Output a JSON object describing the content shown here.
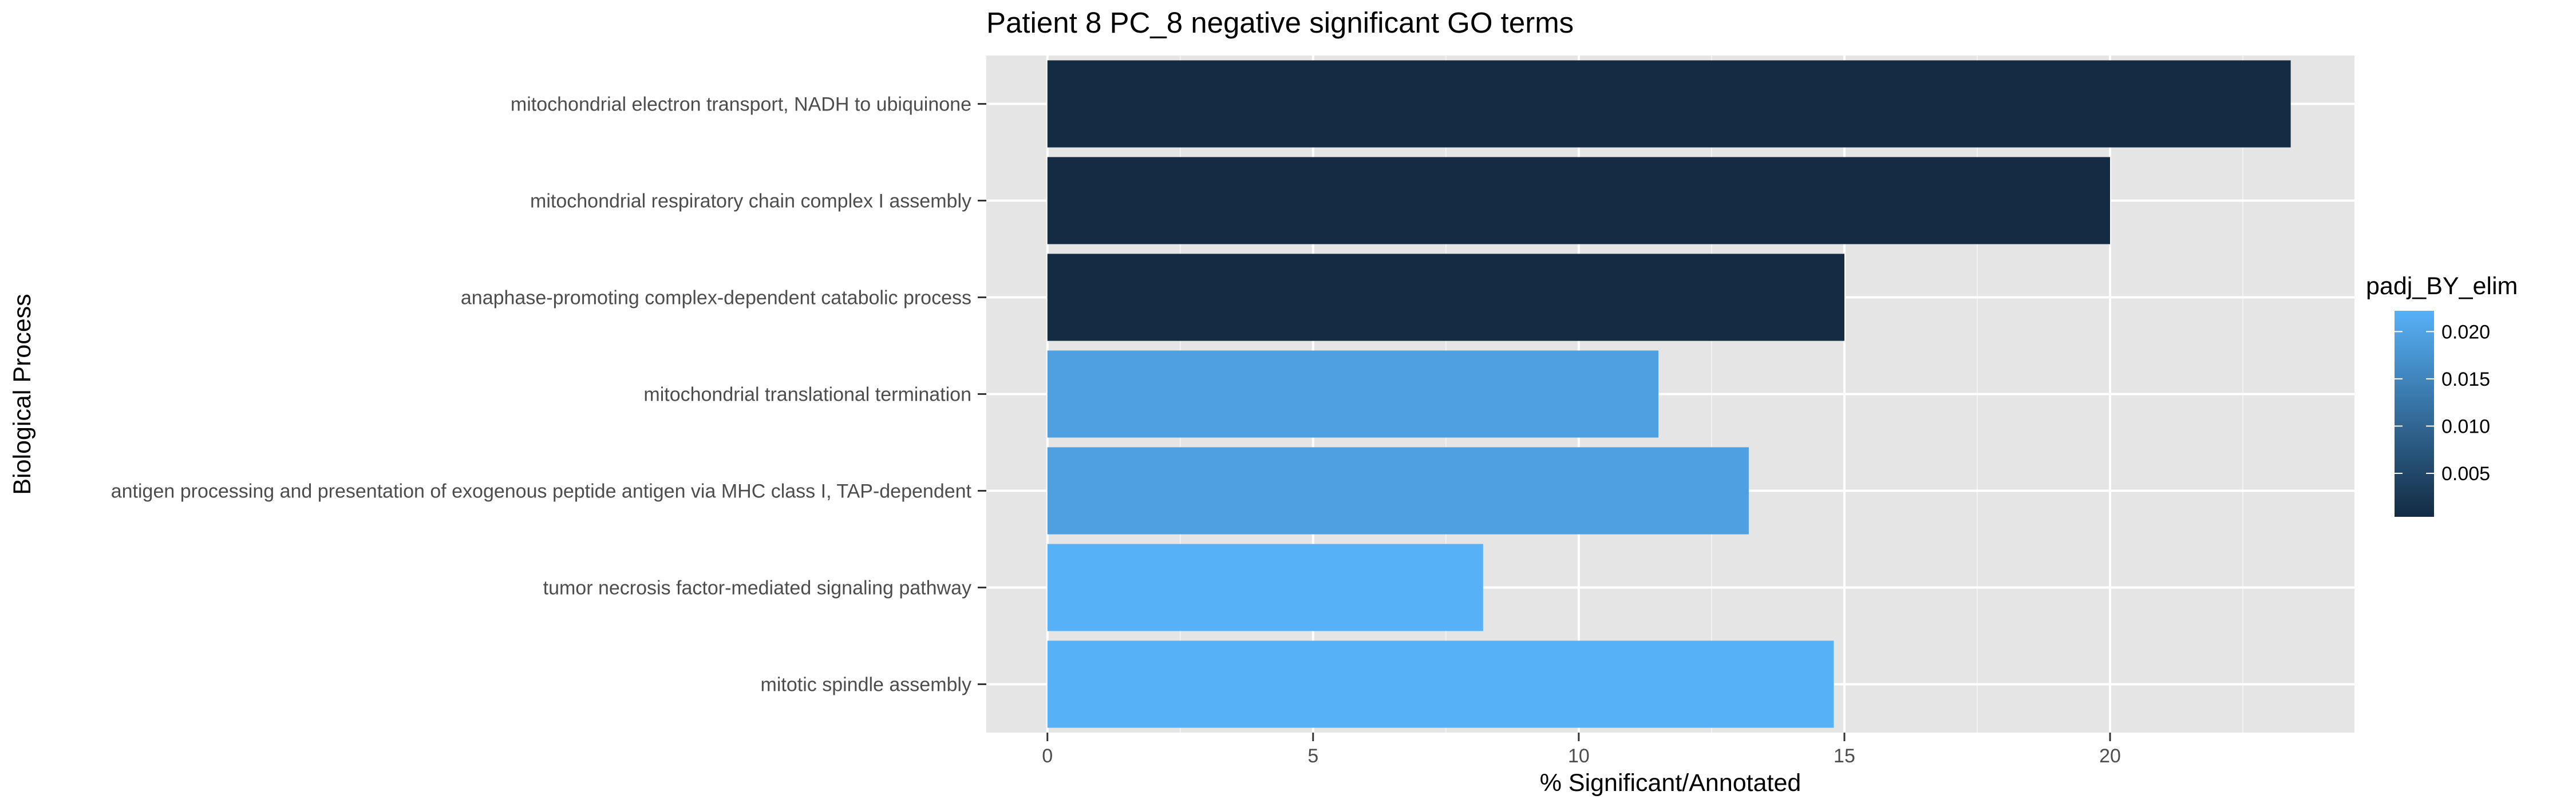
{
  "chart_data": {
    "type": "bar",
    "orientation": "horizontal",
    "title": "Patient 8 PC_8 negative significant GO terms",
    "xlabel": "% Significant/Annotated",
    "ylabel": "Biological Process",
    "xlim": [
      -1.15,
      24.6
    ],
    "x_ticks": [
      0,
      5,
      10,
      15,
      20
    ],
    "grid": true,
    "categories": [
      "mitochondrial electron transport, NADH to ubiquinone",
      "mitochondrial respiratory chain complex I assembly",
      "anaphase-promoting complex-dependent catabolic process",
      "mitochondrial translational termination",
      "antigen processing and presentation of exogenous peptide antigen via MHC class I, TAP-dependent",
      "tumor necrosis factor-mediated signaling pathway",
      "mitotic spindle assembly"
    ],
    "values": [
      23.4,
      20.0,
      15.0,
      11.5,
      13.2,
      8.2,
      14.8
    ],
    "color_values": [
      0.0004,
      0.0004,
      0.0004,
      0.0195,
      0.0195,
      0.0222,
      0.0222
    ],
    "legend": {
      "title": "padj_BY_elim",
      "position": "right",
      "range": [
        0.0004,
        0.0222
      ],
      "ticks": [
        "0.005",
        "0.010",
        "0.015",
        "0.020"
      ],
      "tick_values": [
        0.005,
        0.01,
        0.015,
        0.02
      ],
      "color_low": "#132B43",
      "color_high": "#56B1F7"
    },
    "colors": {
      "panel_background": "#E5E5E5",
      "grid_major": "#FFFFFF",
      "grid_minor": "#F2F2F2",
      "axis_text": "#4D4D4D"
    }
  }
}
